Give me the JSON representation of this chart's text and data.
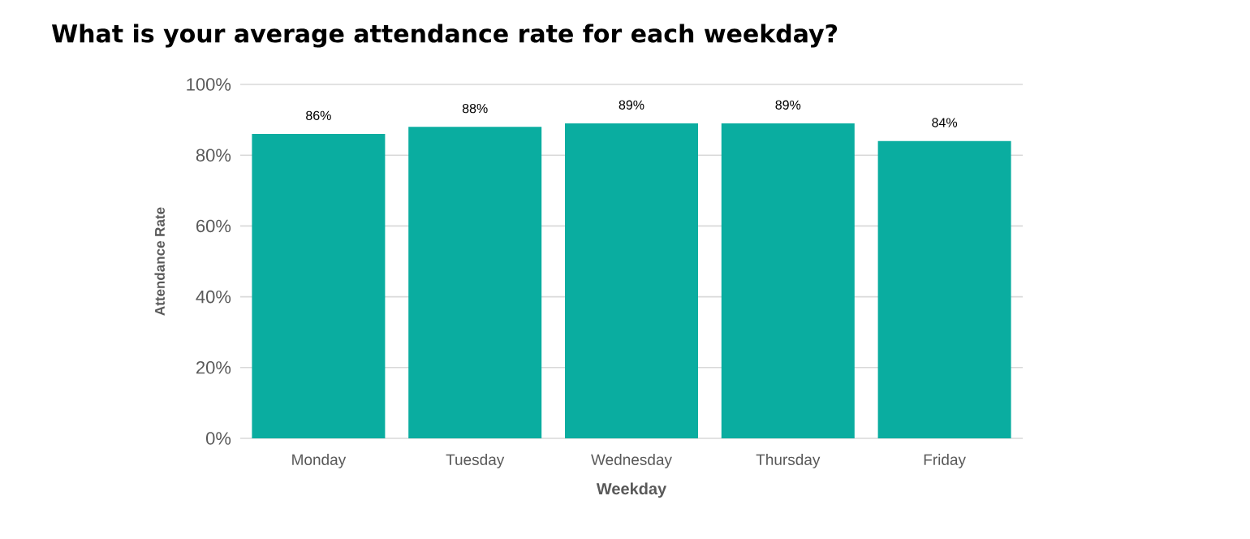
{
  "chart_data": {
    "type": "bar",
    "title": "What is your average attendance rate for each weekday?",
    "xlabel": "Weekday",
    "ylabel": "Attendance Rate",
    "categories": [
      "Monday",
      "Tuesday",
      "Wednesday",
      "Thursday",
      "Friday"
    ],
    "values": [
      86,
      88,
      89,
      89,
      84
    ],
    "value_labels": [
      "86%",
      "88%",
      "89%",
      "89%",
      "84%"
    ],
    "color": "#0aada0",
    "ylim": [
      0,
      100
    ],
    "yticks": [
      {
        "value": 0,
        "label": "0%"
      },
      {
        "value": 20,
        "label": "20%"
      },
      {
        "value": 40,
        "label": "40%"
      },
      {
        "value": 60,
        "label": "60%"
      },
      {
        "value": 80,
        "label": "80%"
      },
      {
        "value": 100,
        "label": "100%"
      }
    ],
    "grid": "y"
  }
}
